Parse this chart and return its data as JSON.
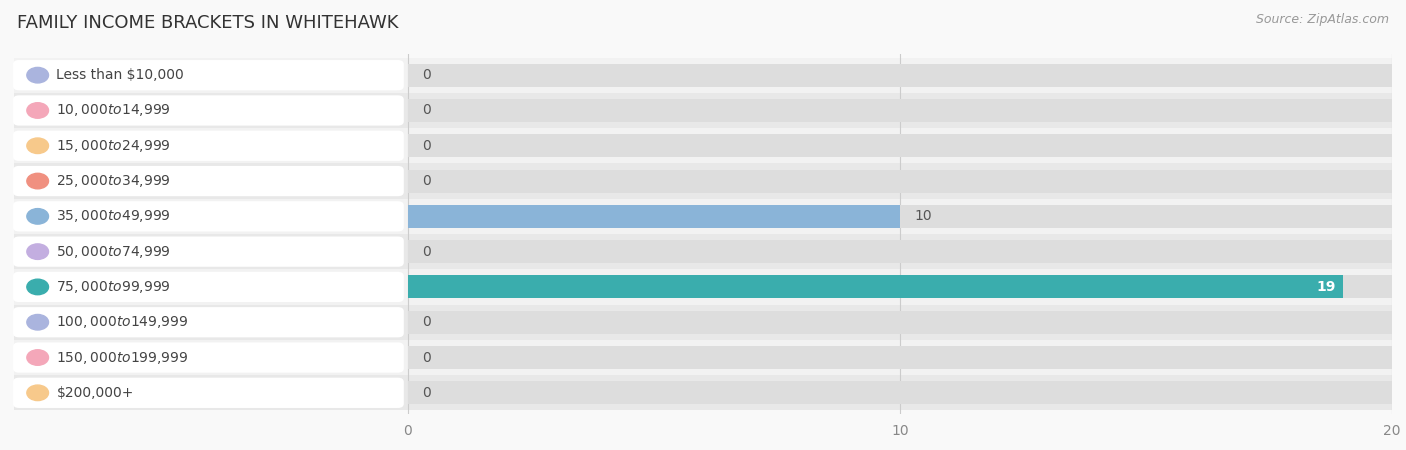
{
  "title": "FAMILY INCOME BRACKETS IN WHITEHAWK",
  "source": "Source: ZipAtlas.com",
  "categories": [
    "Less than $10,000",
    "$10,000 to $14,999",
    "$15,000 to $24,999",
    "$25,000 to $34,999",
    "$35,000 to $49,999",
    "$50,000 to $74,999",
    "$75,000 to $99,999",
    "$100,000 to $149,999",
    "$150,000 to $199,999",
    "$200,000+"
  ],
  "values": [
    0,
    0,
    0,
    0,
    10,
    0,
    19,
    0,
    0,
    0
  ],
  "bar_colors": [
    "#aab4de",
    "#f4a7b9",
    "#f7c98b",
    "#f09080",
    "#8ab4d8",
    "#c3aee0",
    "#3aadad",
    "#aab4de",
    "#f4a7b9",
    "#f7c98b"
  ],
  "xlim": [
    0,
    20
  ],
  "xticks": [
    0,
    10,
    20
  ],
  "row_bg_colors": [
    "#f2f2f2",
    "#e8e8e8"
  ],
  "title_fontsize": 13,
  "label_fontsize": 10,
  "value_fontsize": 10,
  "source_fontsize": 9
}
